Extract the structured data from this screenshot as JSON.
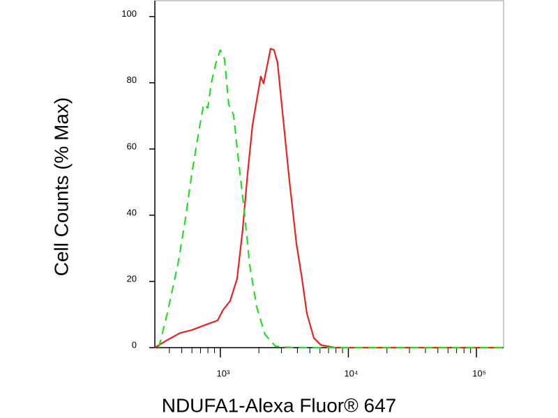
{
  "chart_data": {
    "type": "line",
    "x_label": "NDUFA1-Alexa Fluor® 647",
    "y_label": "Cell Counts (% Max)",
    "xscale": "log",
    "xlim": [
      308,
      163000
    ],
    "ylim": [
      0,
      105
    ],
    "yticks": [
      0,
      20,
      40,
      60,
      80,
      100
    ],
    "xticks": [
      {
        "value": 1000,
        "label": "10³"
      },
      {
        "value": 10000,
        "label": "10⁴"
      },
      {
        "value": 100000,
        "label": "10⁵"
      }
    ],
    "xminorticks": [
      400,
      500,
      600,
      700,
      800,
      900,
      2000,
      3000,
      4000,
      5000,
      6000,
      7000,
      8000,
      9000,
      20000,
      30000,
      40000,
      50000,
      60000,
      70000,
      80000,
      90000
    ],
    "series": [
      {
        "color": "#e8221e",
        "dashed": false,
        "x": [
          308,
          385,
          483,
          598,
          769,
          951,
          1052,
          1192,
          1352,
          1494,
          1632,
          1782,
          1920,
          2070,
          2177,
          2348,
          2468,
          2628,
          2798,
          3055,
          3466,
          3928,
          4343,
          4744,
          5376,
          6095,
          7834,
          163000
        ],
        "values": [
          0,
          2.3,
          4.4,
          5.3,
          6.9,
          8.2,
          11.4,
          14.1,
          20.8,
          35.6,
          52.4,
          67.2,
          74.5,
          81.9,
          79.8,
          86.1,
          90.3,
          89.9,
          86.1,
          71.4,
          50.3,
          31.4,
          20.8,
          10.3,
          2.9,
          0.8,
          0,
          0
        ]
      },
      {
        "color": "#22dd22",
        "dashed": true,
        "x": [
          331,
          385,
          466,
          528,
          598,
          678,
          740,
          798,
          849,
          927,
          1000,
          1078,
          1162,
          1269,
          1386,
          1532,
          1693,
          1920,
          2231,
          2698,
          3687,
          163000
        ],
        "values": [
          0,
          10.3,
          25.1,
          37.7,
          52.4,
          65.1,
          73.5,
          72.4,
          79.8,
          86.1,
          89.9,
          87.2,
          73.5,
          70.3,
          56.6,
          41.9,
          25.1,
          12.4,
          4.0,
          0.4,
          0,
          0
        ]
      }
    ]
  }
}
